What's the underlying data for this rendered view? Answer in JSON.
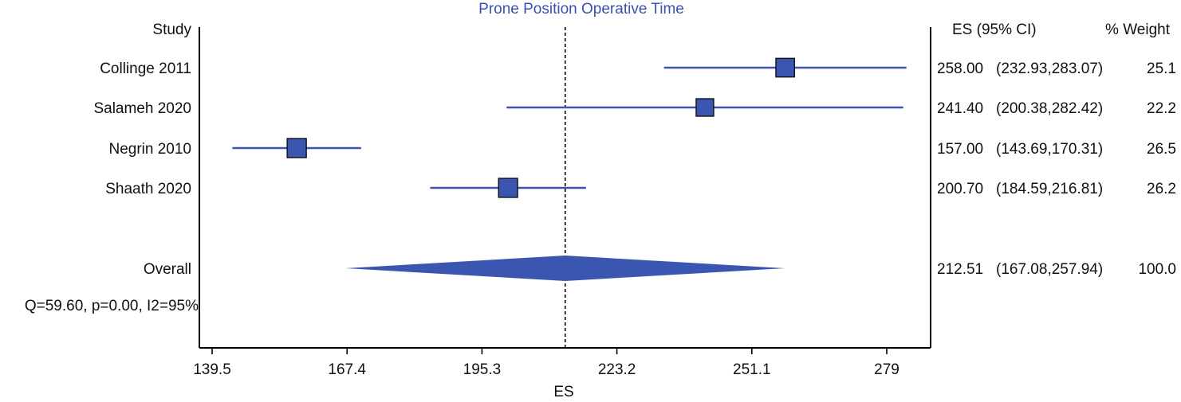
{
  "chart_data": {
    "type": "forest",
    "title": "Prone Position Operative Time",
    "xlabel": "ES",
    "x_ticks": [
      "139.5",
      "167.4",
      "195.3",
      "223.2",
      "251.1",
      "279"
    ],
    "xlim": [
      135.1,
      287.6
    ],
    "reference_line": 212.51,
    "headers": {
      "study": "Study",
      "es_ci": "ES (95% CI)",
      "weight": "% Weight"
    },
    "studies": [
      {
        "name": "Collinge 2011",
        "es": 258.0,
        "lo": 232.93,
        "hi": 283.07,
        "es_text": "258.00",
        "ci_text": "(232.93,283.07)",
        "weight_text": "25.1",
        "weight": 25.1
      },
      {
        "name": "Salameh 2020",
        "es": 241.4,
        "lo": 200.38,
        "hi": 282.42,
        "es_text": "241.40",
        "ci_text": "(200.38,282.42)",
        "weight_text": "22.2",
        "weight": 22.2
      },
      {
        "name": "Negrin 2010",
        "es": 157.0,
        "lo": 143.69,
        "hi": 170.31,
        "es_text": "157.00",
        "ci_text": "(143.69,170.31)",
        "weight_text": "26.5",
        "weight": 26.5
      },
      {
        "name": "Shaath 2020",
        "es": 200.7,
        "lo": 184.59,
        "hi": 216.81,
        "es_text": "200.70",
        "ci_text": "(184.59,216.81)",
        "weight_text": "26.2",
        "weight": 26.2
      }
    ],
    "overall": {
      "name": "Overall",
      "es": 212.51,
      "lo": 167.08,
      "hi": 257.94,
      "es_text": "212.51",
      "ci_text": "(167.08,257.94)",
      "weight_text": "100.0"
    },
    "heterogeneity": "Q=59.60, p=0.00, I2=95%",
    "colors": {
      "marker": "#3b56b0",
      "line": "#3b56b0",
      "title": "#3d4fb0"
    }
  }
}
